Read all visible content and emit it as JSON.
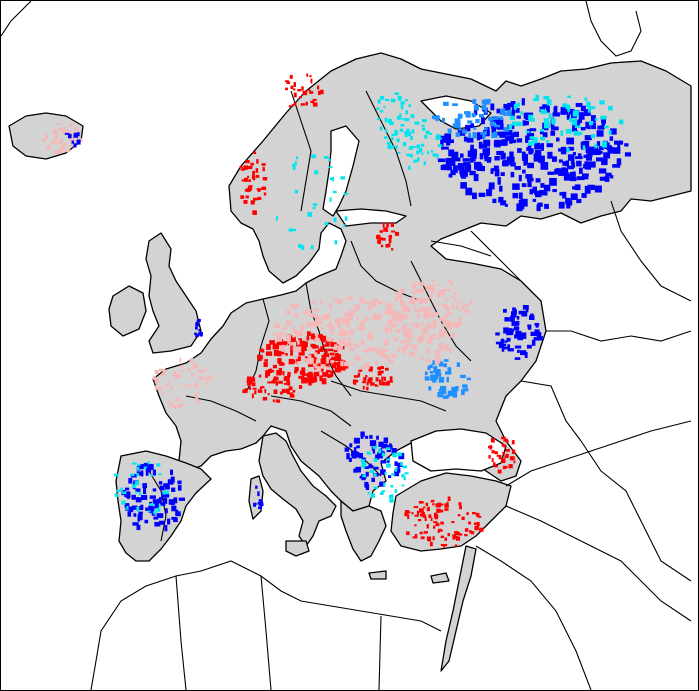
{
  "map": {
    "type": "choropleth-anomaly-map",
    "region": "Europe",
    "colors": {
      "background": "#ffffff",
      "land": "#d3d3d3",
      "borders": "#000000",
      "strong_positive": "#ff0000",
      "weak_positive": "#f4b8b8",
      "strong_negative": "#0000ff",
      "moderate_negative": "#1e90ff",
      "weak_negative": "#00e5ee"
    },
    "legend": null,
    "title": null
  }
}
